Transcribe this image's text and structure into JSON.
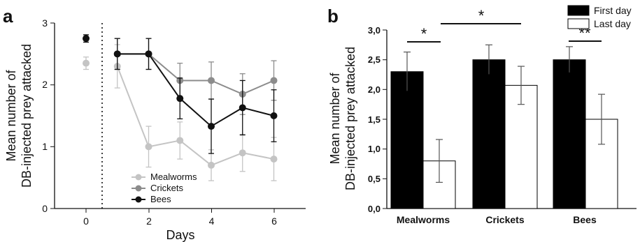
{
  "panels": {
    "a": {
      "letter": "a",
      "xlabel": "Days",
      "ylabel_line1": "Mean number of",
      "ylabel_line2": "DB-injected prey attacked",
      "x_ticks": [
        "0",
        "2",
        "4",
        "6"
      ],
      "y_ticks": [
        "0",
        "1",
        "2",
        "3"
      ]
    },
    "b": {
      "letter": "b",
      "ylabel_line1": "Mean number of",
      "ylabel_line2": "DB-injected prey attacked",
      "y_ticks": [
        "0,0",
        "0,5",
        "1,0",
        "1,5",
        "2,0",
        "2,5",
        "3,0"
      ],
      "significance": [
        "*",
        "*",
        "**"
      ]
    }
  },
  "chart_data": [
    {
      "type": "line",
      "panel": "a",
      "xlabel": "Days",
      "ylabel": "Mean number of DB-injected prey attacked",
      "xlim": [
        -1,
        7
      ],
      "ylim": [
        0,
        3
      ],
      "x_ticks": [
        0,
        2,
        4,
        6
      ],
      "y_ticks": [
        0,
        1,
        2,
        3
      ],
      "grid": false,
      "legend": "bottom-center",
      "baseline_marker_x": 0.5,
      "series": [
        {
          "name": "Mealworms",
          "color": "#c4c4c4",
          "x": [
            0,
            1,
            2,
            3,
            4,
            5,
            6
          ],
          "y": [
            2.35,
            2.3,
            1.0,
            1.1,
            0.7,
            0.9,
            0.8
          ],
          "err": [
            0.1,
            0.35,
            0.33,
            0.3,
            0.25,
            0.3,
            0.35
          ]
        },
        {
          "name": "Crickets",
          "color": "#8c8c8c",
          "x": [
            1,
            2,
            3,
            4,
            5,
            6
          ],
          "y": [
            2.5,
            2.5,
            2.07,
            2.07,
            1.85,
            2.07
          ],
          "err": [
            0.25,
            0.25,
            0.28,
            0.3,
            0.33,
            0.32
          ]
        },
        {
          "name": "Bees",
          "color": "#111111",
          "x": [
            0,
            1,
            2,
            3,
            4,
            5,
            6
          ],
          "y": [
            2.75,
            2.5,
            2.5,
            1.78,
            1.33,
            1.63,
            1.5
          ],
          "err": [
            0.06,
            0.25,
            0.25,
            0.33,
            0.44,
            0.44,
            0.42
          ]
        }
      ]
    },
    {
      "type": "bar",
      "panel": "b",
      "ylabel": "Mean number of DB-injected prey attacked",
      "ylim": [
        0,
        3
      ],
      "y_ticks": [
        "0,0",
        "0,5",
        "1,0",
        "1,5",
        "2,0",
        "2,5",
        "3,0"
      ],
      "grid": false,
      "legend": "top-right",
      "categories": [
        "Mealworms",
        "Crickets",
        "Bees"
      ],
      "series": [
        {
          "name": "First day",
          "color": "#000000",
          "values": [
            2.3,
            2.5,
            2.5
          ],
          "err": [
            0.33,
            0.25,
            0.22
          ]
        },
        {
          "name": "Last day",
          "color": "#ffffff",
          "values": [
            0.8,
            2.07,
            1.5
          ],
          "err": [
            0.36,
            0.32,
            0.42
          ]
        }
      ],
      "significance": [
        {
          "label": "*",
          "between": [
            "Mealworms First day",
            "Mealworms Last day"
          ]
        },
        {
          "label": "*",
          "between": [
            "Mealworms Last day",
            "Crickets Last day"
          ]
        },
        {
          "label": "**",
          "between": [
            "Bees First day",
            "Bees Last day"
          ]
        }
      ]
    }
  ]
}
